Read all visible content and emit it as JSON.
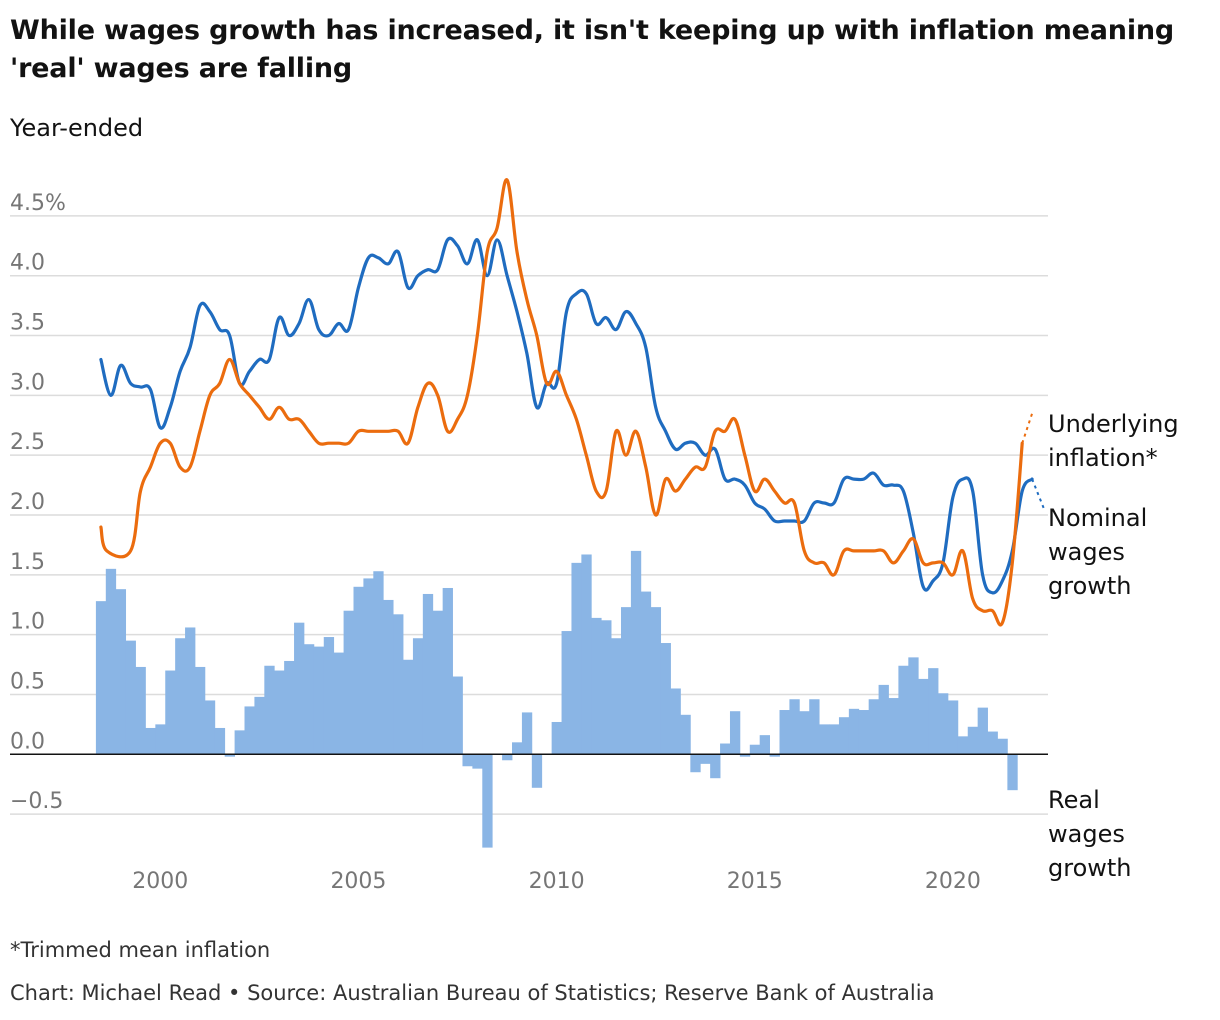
{
  "title": "While wages growth has increased, it isn't keeping up with inflation meaning 'real' wages are falling",
  "subtitle": "Year-ended",
  "footnote": "*Trimmed mean inflation",
  "source": "Chart: Michael Read • Source: Australian Bureau of Statistics; Reserve Bank of Australia",
  "chart_data": {
    "type": "line",
    "x_ticks": [
      2000,
      2005,
      2010,
      2015,
      2020
    ],
    "y_ticks": [
      {
        "value": 4.5,
        "label": "4.5%"
      },
      {
        "value": 4.0,
        "label": "4.0"
      },
      {
        "value": 3.5,
        "label": "3.5"
      },
      {
        "value": 3.0,
        "label": "3.0"
      },
      {
        "value": 2.5,
        "label": "2.5"
      },
      {
        "value": 2.0,
        "label": "2.0"
      },
      {
        "value": 1.5,
        "label": "1.5"
      },
      {
        "value": 1.0,
        "label": "1.0"
      },
      {
        "value": 0.5,
        "label": "0.5"
      },
      {
        "value": 0.0,
        "label": "0.0"
      },
      {
        "value": -0.5,
        "label": "−0.5"
      }
    ],
    "ylim": [
      -0.8,
      4.8
    ],
    "xlim": [
      1998.1,
      2022.4
    ],
    "grid": true,
    "colors": {
      "inflation": "#eb6c0e",
      "wages": "#1f6cc0",
      "real": "#8ab5e5",
      "grid": "#dcdcdc",
      "zero": "#121212"
    },
    "series": [
      {
        "name": "Underlying inflation*",
        "label_lines": [
          "Underlying",
          "inflation*"
        ],
        "color": "#eb6c0e",
        "dashed_ext": [
          [
            2021.75,
            2.6
          ],
          [
            2022.0,
            2.85
          ]
        ],
        "points": [
          [
            1998.5,
            1.9
          ],
          [
            1998.65,
            1.7
          ],
          [
            1999.25,
            1.7
          ],
          [
            1999.5,
            2.2
          ],
          [
            1999.75,
            2.4
          ],
          [
            2000.0,
            2.6
          ],
          [
            2000.25,
            2.6
          ],
          [
            2000.5,
            2.4
          ],
          [
            2000.75,
            2.4
          ],
          [
            2001.0,
            2.7
          ],
          [
            2001.25,
            3.0
          ],
          [
            2001.5,
            3.1
          ],
          [
            2001.75,
            3.3
          ],
          [
            2002.0,
            3.1
          ],
          [
            2002.25,
            3.0
          ],
          [
            2002.5,
            2.9
          ],
          [
            2002.75,
            2.8
          ],
          [
            2003.0,
            2.9
          ],
          [
            2003.25,
            2.8
          ],
          [
            2003.5,
            2.8
          ],
          [
            2003.75,
            2.7
          ],
          [
            2004.0,
            2.6
          ],
          [
            2004.25,
            2.6
          ],
          [
            2004.5,
            2.6
          ],
          [
            2004.75,
            2.6
          ],
          [
            2005.0,
            2.7
          ],
          [
            2005.25,
            2.7
          ],
          [
            2005.5,
            2.7
          ],
          [
            2005.75,
            2.7
          ],
          [
            2006.0,
            2.7
          ],
          [
            2006.25,
            2.6
          ],
          [
            2006.5,
            2.9
          ],
          [
            2006.75,
            3.1
          ],
          [
            2007.0,
            3.0
          ],
          [
            2007.25,
            2.7
          ],
          [
            2007.5,
            2.8
          ],
          [
            2007.75,
            3.0
          ],
          [
            2008.0,
            3.5
          ],
          [
            2008.25,
            4.2
          ],
          [
            2008.5,
            4.4
          ],
          [
            2008.75,
            4.8
          ],
          [
            2009.0,
            4.2
          ],
          [
            2009.25,
            3.8
          ],
          [
            2009.5,
            3.5
          ],
          [
            2009.75,
            3.1
          ],
          [
            2010.0,
            3.2
          ],
          [
            2010.25,
            3.0
          ],
          [
            2010.5,
            2.8
          ],
          [
            2010.75,
            2.5
          ],
          [
            2011.0,
            2.2
          ],
          [
            2011.25,
            2.2
          ],
          [
            2011.5,
            2.7
          ],
          [
            2011.75,
            2.5
          ],
          [
            2012.0,
            2.7
          ],
          [
            2012.25,
            2.4
          ],
          [
            2012.5,
            2.0
          ],
          [
            2012.75,
            2.3
          ],
          [
            2013.0,
            2.2
          ],
          [
            2013.25,
            2.3
          ],
          [
            2013.5,
            2.4
          ],
          [
            2013.75,
            2.4
          ],
          [
            2014.0,
            2.7
          ],
          [
            2014.25,
            2.7
          ],
          [
            2014.5,
            2.8
          ],
          [
            2014.75,
            2.5
          ],
          [
            2015.0,
            2.2
          ],
          [
            2015.25,
            2.3
          ],
          [
            2015.5,
            2.2
          ],
          [
            2015.75,
            2.1
          ],
          [
            2016.0,
            2.1
          ],
          [
            2016.25,
            1.7
          ],
          [
            2016.5,
            1.6
          ],
          [
            2016.75,
            1.6
          ],
          [
            2017.0,
            1.5
          ],
          [
            2017.25,
            1.7
          ],
          [
            2017.5,
            1.7
          ],
          [
            2017.75,
            1.7
          ],
          [
            2018.0,
            1.7
          ],
          [
            2018.25,
            1.7
          ],
          [
            2018.5,
            1.6
          ],
          [
            2018.75,
            1.7
          ],
          [
            2019.0,
            1.8
          ],
          [
            2019.25,
            1.6
          ],
          [
            2019.5,
            1.6
          ],
          [
            2019.75,
            1.6
          ],
          [
            2020.0,
            1.5
          ],
          [
            2020.25,
            1.7
          ],
          [
            2020.5,
            1.3
          ],
          [
            2020.75,
            1.2
          ],
          [
            2021.0,
            1.2
          ],
          [
            2021.25,
            1.1
          ],
          [
            2021.5,
            1.6
          ],
          [
            2021.75,
            2.6
          ]
        ]
      },
      {
        "name": "Nominal wages growth",
        "label_lines": [
          "Nominal",
          "wages",
          "growth"
        ],
        "color": "#1f6cc0",
        "dashed_ext": [
          [
            2022.0,
            2.3
          ],
          [
            2022.3,
            2.05
          ]
        ],
        "points": [
          [
            1998.5,
            3.3
          ],
          [
            1998.75,
            3.0
          ],
          [
            1999.0,
            3.25
          ],
          [
            1999.25,
            3.1
          ],
          [
            1999.5,
            3.07
          ],
          [
            1999.75,
            3.05
          ],
          [
            2000.0,
            2.73
          ],
          [
            2000.25,
            2.9
          ],
          [
            2000.5,
            3.2
          ],
          [
            2000.75,
            3.4
          ],
          [
            2001.0,
            3.75
          ],
          [
            2001.25,
            3.7
          ],
          [
            2001.5,
            3.55
          ],
          [
            2001.75,
            3.5
          ],
          [
            2002.0,
            3.1
          ],
          [
            2002.25,
            3.2
          ],
          [
            2002.5,
            3.3
          ],
          [
            2002.75,
            3.3
          ],
          [
            2003.0,
            3.65
          ],
          [
            2003.25,
            3.5
          ],
          [
            2003.5,
            3.6
          ],
          [
            2003.75,
            3.8
          ],
          [
            2004.0,
            3.55
          ],
          [
            2004.25,
            3.5
          ],
          [
            2004.5,
            3.6
          ],
          [
            2004.75,
            3.55
          ],
          [
            2005.0,
            3.9
          ],
          [
            2005.25,
            4.15
          ],
          [
            2005.5,
            4.15
          ],
          [
            2005.75,
            4.1
          ],
          [
            2006.0,
            4.2
          ],
          [
            2006.25,
            3.9
          ],
          [
            2006.5,
            4.0
          ],
          [
            2006.75,
            4.05
          ],
          [
            2007.0,
            4.05
          ],
          [
            2007.25,
            4.3
          ],
          [
            2007.5,
            4.25
          ],
          [
            2007.75,
            4.1
          ],
          [
            2008.0,
            4.3
          ],
          [
            2008.25,
            4.0
          ],
          [
            2008.5,
            4.3
          ],
          [
            2008.75,
            4.0
          ],
          [
            2009.0,
            3.7
          ],
          [
            2009.25,
            3.35
          ],
          [
            2009.5,
            2.9
          ],
          [
            2009.75,
            3.1
          ],
          [
            2010.0,
            3.1
          ],
          [
            2010.25,
            3.7
          ],
          [
            2010.5,
            3.85
          ],
          [
            2010.75,
            3.85
          ],
          [
            2011.0,
            3.6
          ],
          [
            2011.25,
            3.65
          ],
          [
            2011.5,
            3.55
          ],
          [
            2011.75,
            3.7
          ],
          [
            2012.0,
            3.6
          ],
          [
            2012.25,
            3.4
          ],
          [
            2012.5,
            2.9
          ],
          [
            2012.75,
            2.7
          ],
          [
            2013.0,
            2.55
          ],
          [
            2013.25,
            2.6
          ],
          [
            2013.5,
            2.6
          ],
          [
            2013.75,
            2.5
          ],
          [
            2014.0,
            2.55
          ],
          [
            2014.25,
            2.3
          ],
          [
            2014.5,
            2.3
          ],
          [
            2014.75,
            2.25
          ],
          [
            2015.0,
            2.1
          ],
          [
            2015.25,
            2.05
          ],
          [
            2015.5,
            1.95
          ],
          [
            2015.75,
            1.95
          ],
          [
            2016.0,
            1.95
          ],
          [
            2016.25,
            1.95
          ],
          [
            2016.5,
            2.1
          ],
          [
            2016.75,
            2.1
          ],
          [
            2017.0,
            2.1
          ],
          [
            2017.25,
            2.3
          ],
          [
            2017.5,
            2.3
          ],
          [
            2017.75,
            2.3
          ],
          [
            2018.0,
            2.35
          ],
          [
            2018.25,
            2.25
          ],
          [
            2018.5,
            2.25
          ],
          [
            2018.75,
            2.2
          ],
          [
            2019.0,
            1.85
          ],
          [
            2019.25,
            1.4
          ],
          [
            2019.5,
            1.45
          ],
          [
            2019.75,
            1.6
          ],
          [
            2020.0,
            2.15
          ],
          [
            2020.25,
            2.3
          ],
          [
            2020.5,
            2.2
          ],
          [
            2020.75,
            1.5
          ],
          [
            2021.0,
            1.35
          ],
          [
            2021.25,
            1.45
          ],
          [
            2021.5,
            1.7
          ],
          [
            2021.75,
            2.2
          ],
          [
            2022.0,
            2.3
          ]
        ]
      },
      {
        "name": "Real wages growth",
        "label_lines": [
          "Real",
          "wages",
          "growth"
        ],
        "color": "#8ab5e5",
        "bar_width_years": 0.25,
        "bars": [
          [
            1998.5,
            1.28
          ],
          [
            1998.75,
            1.55
          ],
          [
            1999.0,
            1.38
          ],
          [
            1999.25,
            0.95
          ],
          [
            1999.5,
            0.73
          ],
          [
            1999.75,
            0.22
          ],
          [
            2000.0,
            0.25
          ],
          [
            2000.25,
            0.7
          ],
          [
            2000.5,
            0.97
          ],
          [
            2000.75,
            1.06
          ],
          [
            2001.0,
            0.73
          ],
          [
            2001.25,
            0.45
          ],
          [
            2001.5,
            0.22
          ],
          [
            2001.75,
            -0.02
          ],
          [
            2002.0,
            0.2
          ],
          [
            2002.25,
            0.4
          ],
          [
            2002.5,
            0.48
          ],
          [
            2002.75,
            0.74
          ],
          [
            2003.0,
            0.7
          ],
          [
            2003.25,
            0.78
          ],
          [
            2003.5,
            1.1
          ],
          [
            2003.75,
            0.92
          ],
          [
            2004.0,
            0.9
          ],
          [
            2004.25,
            0.98
          ],
          [
            2004.5,
            0.85
          ],
          [
            2004.75,
            1.2
          ],
          [
            2005.0,
            1.4
          ],
          [
            2005.25,
            1.47
          ],
          [
            2005.5,
            1.53
          ],
          [
            2005.75,
            1.29
          ],
          [
            2006.0,
            1.17
          ],
          [
            2006.25,
            0.79
          ],
          [
            2006.5,
            0.97
          ],
          [
            2006.75,
            1.34
          ],
          [
            2007.0,
            1.2
          ],
          [
            2007.25,
            1.39
          ],
          [
            2007.5,
            0.65
          ],
          [
            2007.75,
            -0.1
          ],
          [
            2008.0,
            -0.12
          ],
          [
            2008.25,
            -0.78
          ],
          [
            2008.5,
            0.0
          ],
          [
            2008.75,
            -0.05
          ],
          [
            2009.0,
            0.1
          ],
          [
            2009.25,
            0.35
          ],
          [
            2009.5,
            -0.28
          ],
          [
            2009.75,
            0.0
          ],
          [
            2010.0,
            0.27
          ],
          [
            2010.25,
            1.03
          ],
          [
            2010.5,
            1.6
          ],
          [
            2010.75,
            1.67
          ],
          [
            2011.0,
            1.14
          ],
          [
            2011.25,
            1.12
          ],
          [
            2011.5,
            0.97
          ],
          [
            2011.75,
            1.23
          ],
          [
            2012.0,
            1.7
          ],
          [
            2012.25,
            1.36
          ],
          [
            2012.5,
            1.23
          ],
          [
            2012.75,
            0.93
          ],
          [
            2013.0,
            0.55
          ],
          [
            2013.25,
            0.33
          ],
          [
            2013.5,
            -0.15
          ],
          [
            2013.75,
            -0.08
          ],
          [
            2014.0,
            -0.2
          ],
          [
            2014.25,
            0.09
          ],
          [
            2014.5,
            0.36
          ],
          [
            2014.75,
            -0.02
          ],
          [
            2015.0,
            0.08
          ],
          [
            2015.25,
            0.16
          ],
          [
            2015.5,
            -0.02
          ],
          [
            2015.75,
            0.37
          ],
          [
            2016.0,
            0.46
          ],
          [
            2016.25,
            0.36
          ],
          [
            2016.5,
            0.46
          ],
          [
            2016.75,
            0.25
          ],
          [
            2017.0,
            0.25
          ],
          [
            2017.25,
            0.31
          ],
          [
            2017.5,
            0.38
          ],
          [
            2017.75,
            0.37
          ],
          [
            2018.0,
            0.46
          ],
          [
            2018.25,
            0.58
          ],
          [
            2018.5,
            0.47
          ],
          [
            2018.75,
            0.74
          ],
          [
            2019.0,
            0.81
          ],
          [
            2019.25,
            0.63
          ],
          [
            2019.5,
            0.72
          ],
          [
            2019.75,
            0.51
          ],
          [
            2020.0,
            0.45
          ],
          [
            2020.25,
            0.15
          ],
          [
            2020.5,
            0.23
          ],
          [
            2020.75,
            0.39
          ],
          [
            2021.0,
            0.19
          ],
          [
            2021.25,
            0.13
          ],
          [
            2021.5,
            -0.3
          ]
        ]
      }
    ]
  }
}
